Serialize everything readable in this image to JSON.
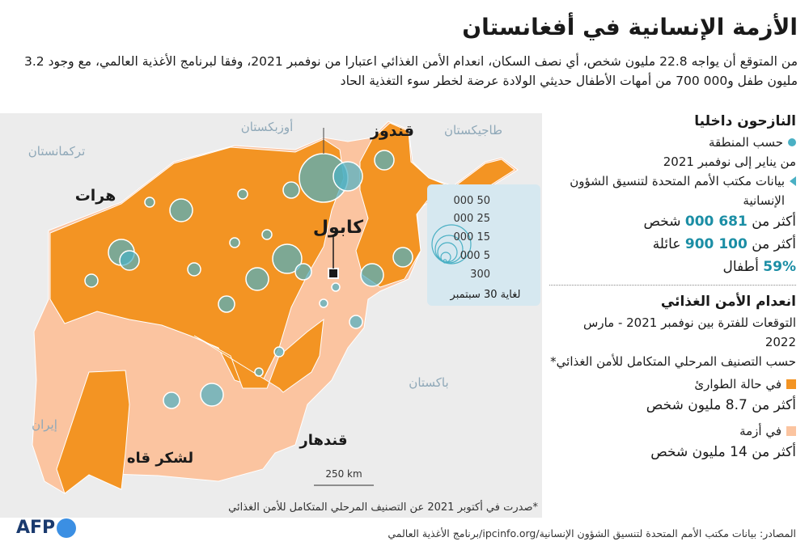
{
  "title": "الأزمة الإنسانية في أفغانستان",
  "intro": "من المتوقع أن يواجه 22.8 مليون شخص، أي نصف السكان، انعدام الأمن الغذائي اعتبارا من نوفمبر 2021، وفقا لبرنامج الأغذية العالمي، مع وجود 3.2 مليون طفل و000 700 من أمهات الأطفال حديثي الولادة عرضة لخطر سوء التغذية الحاد",
  "colors": {
    "emergency": "#f39423",
    "crisis": "#fbc4a0",
    "bubble": "#4ab0c4",
    "neighbor": "#ececec",
    "kabul_marker": "#1a1a1a"
  },
  "map": {
    "countries": [
      "تركمانستان",
      "أوزبكستان",
      "طاجيكستان",
      "باكستان",
      "إيران"
    ],
    "cities": [
      "قندوز",
      "هرات",
      "كابول",
      "قندهار",
      "لشكر قاه"
    ],
    "scale_label": "250 km",
    "legend_values": [
      "50 000",
      "25 000",
      "15 000",
      "5 000",
      "300"
    ],
    "legend_caption": "لغاية 30 سبتمبر"
  },
  "sidebar": {
    "idp_heading": "النازحون داخليا",
    "by_region": "حسب المنطقة",
    "period": "من يناير إلى نوفمبر 2021",
    "ocha_source": "بيانات مكتب الأمم المتحدة لتنسيق الشؤون الإنسانية",
    "people_prefix": "أكثر من",
    "people_value": "681 000",
    "people_suffix": "شخص",
    "families_prefix": "أكثر من",
    "families_value": "100 900",
    "families_suffix": "عائلة",
    "children_value": "59%",
    "children_suffix": "أطفال",
    "food_heading": "انعدام الأمن الغذائي",
    "forecast": "التوقعات للفترة بين نوفمبر 2021 - مارس 2022",
    "ipc": "حسب التصنيف المرحلي المتكامل للأمن الغذائي*",
    "emergency_label": "في حالة الطوارئ",
    "emergency_value": "أكثر من 8.7 مليون شخص",
    "crisis_label": "في أزمة",
    "crisis_value": "أكثر من 14 مليون شخص"
  },
  "footnote": "*صدرت في أكتوبر 2021 عن التصنيف المرحلي المتكامل للأمن الغذائي",
  "source": "المصادر: بيانات مكتب الأمم المتحدة لتنسيق الشؤون الإنسانية/ipcinfo.org/برنامج الأغذية العالمي",
  "logo": "AFP"
}
